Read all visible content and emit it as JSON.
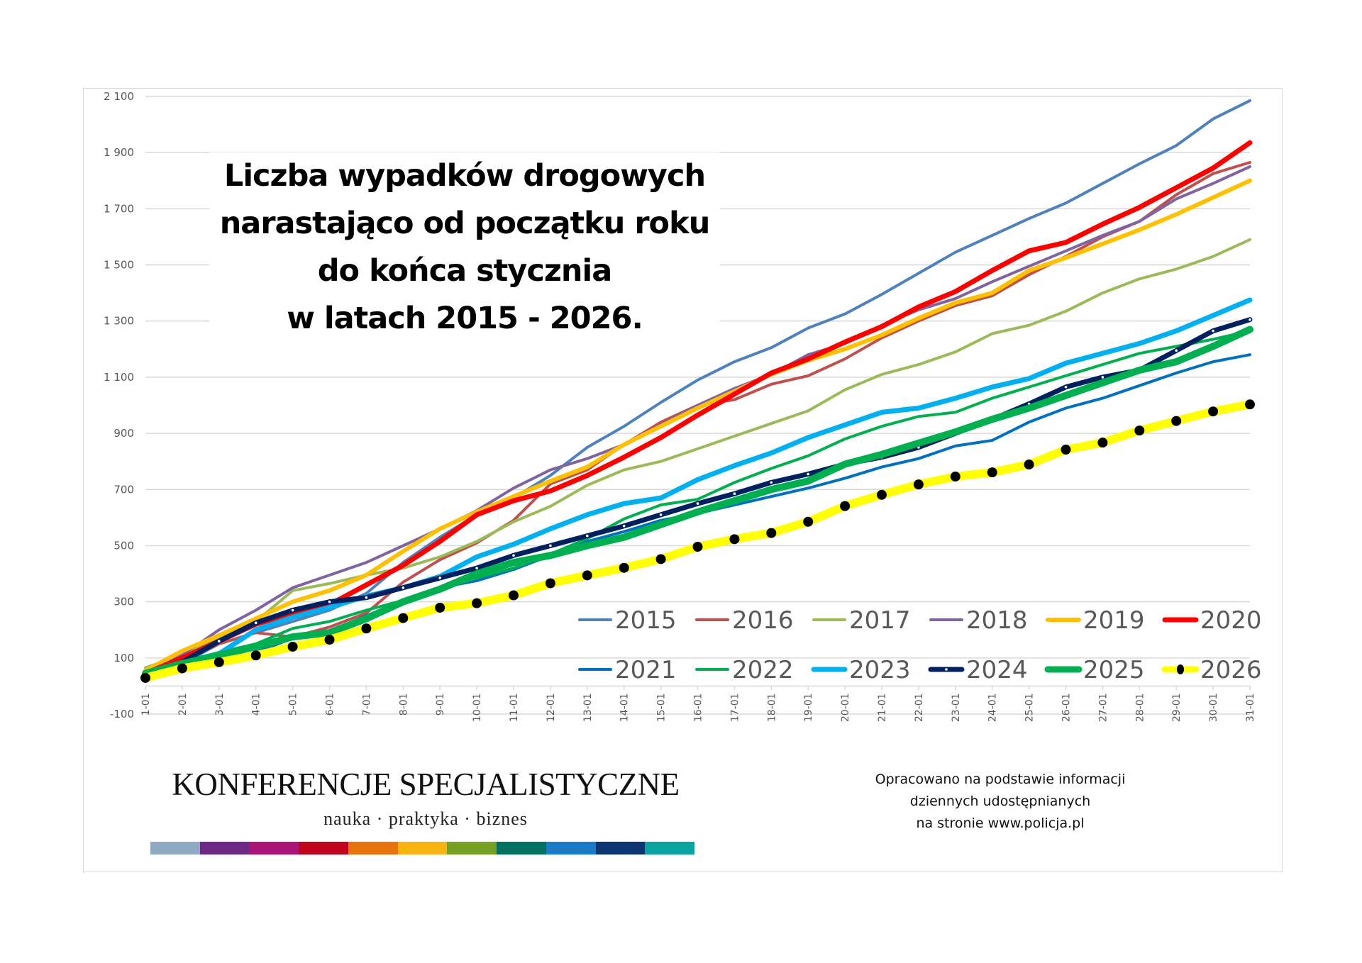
{
  "title_lines": [
    "Liczba wypadków drogowych",
    "narastająco od początku roku",
    "do końca stycznia",
    "w latach 2015 - 2026."
  ],
  "logo": {
    "name": "KONFERENCJE SPECJALISTYCZNE",
    "tagline": "nauka · praktyka · biznes",
    "bar_colors": [
      "#8fa9c4",
      "#6b2a84",
      "#ac1576",
      "#c0061f",
      "#e8720c",
      "#f7b410",
      "#76a021",
      "#00725f",
      "#1a7cc7",
      "#0d3670",
      "#0aa39f"
    ]
  },
  "source_note": [
    "Opracowano na podstawie informacji",
    "dziennych udostępnianych",
    "na stronie www.policja.pl"
  ],
  "chart_data": {
    "type": "line",
    "title": "Liczba wypadków drogowych narastająco od początku roku do końca stycznia w latach 2015 - 2026.",
    "xlabel": "",
    "ylabel": "",
    "ylim": [
      -100,
      2100
    ],
    "yticks": [
      -100,
      100,
      300,
      500,
      700,
      900,
      1100,
      1300,
      1500,
      1700,
      1900,
      2100
    ],
    "ytick_labels": [
      "-100",
      "100",
      "300",
      "500",
      "700",
      "900",
      "1 100",
      "1 300",
      "1 500",
      "1 700",
      "1 900",
      "2 100"
    ],
    "grid": true,
    "legend_position": "lower-right",
    "categories": [
      "1-01",
      "2-01",
      "3-01",
      "4-01",
      "5-01",
      "6-01",
      "7-01",
      "8-01",
      "9-01",
      "10-01",
      "11-01",
      "12-01",
      "13-01",
      "14-01",
      "15-01",
      "16-01",
      "17-01",
      "18-01",
      "19-01",
      "20-01",
      "21-01",
      "22-01",
      "23-01",
      "24-01",
      "25-01",
      "26-01",
      "27-01",
      "28-01",
      "29-01",
      "30-01",
      "31-01"
    ],
    "series": [
      {
        "name": "2015",
        "color": "#4f81bd",
        "width": 4,
        "values": [
          40,
          80,
          150,
          190,
          230,
          270,
          330,
          440,
          530,
          610,
          670,
          750,
          850,
          925,
          1010,
          1090,
          1155,
          1205,
          1275,
          1325,
          1395,
          1470,
          1545,
          1605,
          1665,
          1720,
          1790,
          1860,
          1925,
          2020,
          2085
        ]
      },
      {
        "name": "2016",
        "color": "#c0504d",
        "width": 4,
        "values": [
          35,
          90,
          150,
          190,
          175,
          210,
          260,
          370,
          450,
          510,
          590,
          720,
          770,
          860,
          940,
          1000,
          1020,
          1075,
          1105,
          1165,
          1240,
          1300,
          1355,
          1390,
          1465,
          1530,
          1600,
          1655,
          1750,
          1825,
          1865
        ]
      },
      {
        "name": "2017",
        "color": "#9bbb59",
        "width": 4,
        "values": [
          65,
          110,
          170,
          230,
          340,
          365,
          395,
          420,
          460,
          515,
          585,
          640,
          715,
          770,
          800,
          845,
          890,
          935,
          980,
          1055,
          1110,
          1145,
          1190,
          1255,
          1285,
          1335,
          1400,
          1450,
          1485,
          1530,
          1590
        ]
      },
      {
        "name": "2018",
        "color": "#8064a2",
        "width": 4,
        "values": [
          45,
          110,
          200,
          270,
          350,
          395,
          440,
          500,
          560,
          625,
          705,
          770,
          810,
          860,
          930,
          1000,
          1060,
          1110,
          1180,
          1220,
          1285,
          1340,
          1380,
          1440,
          1495,
          1550,
          1605,
          1655,
          1735,
          1790,
          1850
        ]
      },
      {
        "name": "2019",
        "color": "#ffc000",
        "width": 6,
        "values": [
          55,
          125,
          180,
          240,
          300,
          340,
          395,
          480,
          560,
          620,
          675,
          730,
          780,
          860,
          925,
          990,
          1050,
          1110,
          1160,
          1200,
          1250,
          1310,
          1365,
          1400,
          1480,
          1525,
          1575,
          1625,
          1680,
          1740,
          1800
        ]
      },
      {
        "name": "2020",
        "color": "#ff0000",
        "width": 7,
        "values": [
          45,
          100,
          160,
          220,
          260,
          290,
          360,
          430,
          515,
          610,
          660,
          695,
          750,
          815,
          885,
          965,
          1040,
          1115,
          1165,
          1225,
          1280,
          1350,
          1405,
          1480,
          1550,
          1580,
          1645,
          1705,
          1775,
          1845,
          1935
        ]
      },
      {
        "name": "2021",
        "color": "#0070c0",
        "width": 4,
        "values": [
          25,
          55,
          80,
          120,
          170,
          195,
          250,
          305,
          350,
          375,
          415,
          465,
          515,
          550,
          590,
          615,
          645,
          675,
          705,
          740,
          780,
          810,
          855,
          875,
          940,
          990,
          1025,
          1070,
          1115,
          1155,
          1180
        ]
      },
      {
        "name": "2022",
        "color": "#00b050",
        "width": 4,
        "values": [
          40,
          85,
          120,
          150,
          205,
          230,
          270,
          305,
          345,
          385,
          420,
          470,
          525,
          595,
          645,
          665,
          725,
          775,
          820,
          880,
          925,
          960,
          975,
          1025,
          1065,
          1105,
          1145,
          1185,
          1210,
          1235,
          1265
        ]
      },
      {
        "name": "2023",
        "color": "#00b0f0",
        "width": 7,
        "values": [
          35,
          85,
          115,
          200,
          245,
          280,
          320,
          350,
          390,
          460,
          505,
          560,
          610,
          650,
          670,
          735,
          785,
          830,
          885,
          930,
          975,
          990,
          1025,
          1065,
          1095,
          1150,
          1185,
          1220,
          1265,
          1320,
          1375
        ]
      },
      {
        "name": "2024",
        "color": "#002060",
        "width": 7,
        "markers": "white-dot",
        "values": [
          40,
          85,
          160,
          225,
          270,
          300,
          315,
          350,
          385,
          420,
          465,
          500,
          535,
          570,
          610,
          650,
          685,
          725,
          755,
          790,
          815,
          850,
          900,
          950,
          1005,
          1065,
          1100,
          1125,
          1195,
          1265,
          1305
        ]
      },
      {
        "name": "2025",
        "color": "#00b050",
        "width": 10,
        "values": [
          45,
          80,
          110,
          140,
          175,
          190,
          240,
          300,
          345,
          400,
          440,
          465,
          500,
          530,
          575,
          620,
          660,
          700,
          730,
          790,
          825,
          865,
          905,
          950,
          990,
          1035,
          1080,
          1125,
          1155,
          1210,
          1270
        ]
      },
      {
        "name": "2026",
        "color": "#ffff00",
        "width": 12,
        "markers": "black-circle",
        "values": [
          29,
          63,
          85,
          109,
          140,
          165,
          205,
          242,
          279,
          295,
          323,
          366,
          394,
          421,
          452,
          496,
          523,
          545,
          585,
          641,
          681,
          718,
          746,
          761,
          789,
          842,
          867,
          910,
          944,
          978,
          1003
        ]
      }
    ]
  }
}
